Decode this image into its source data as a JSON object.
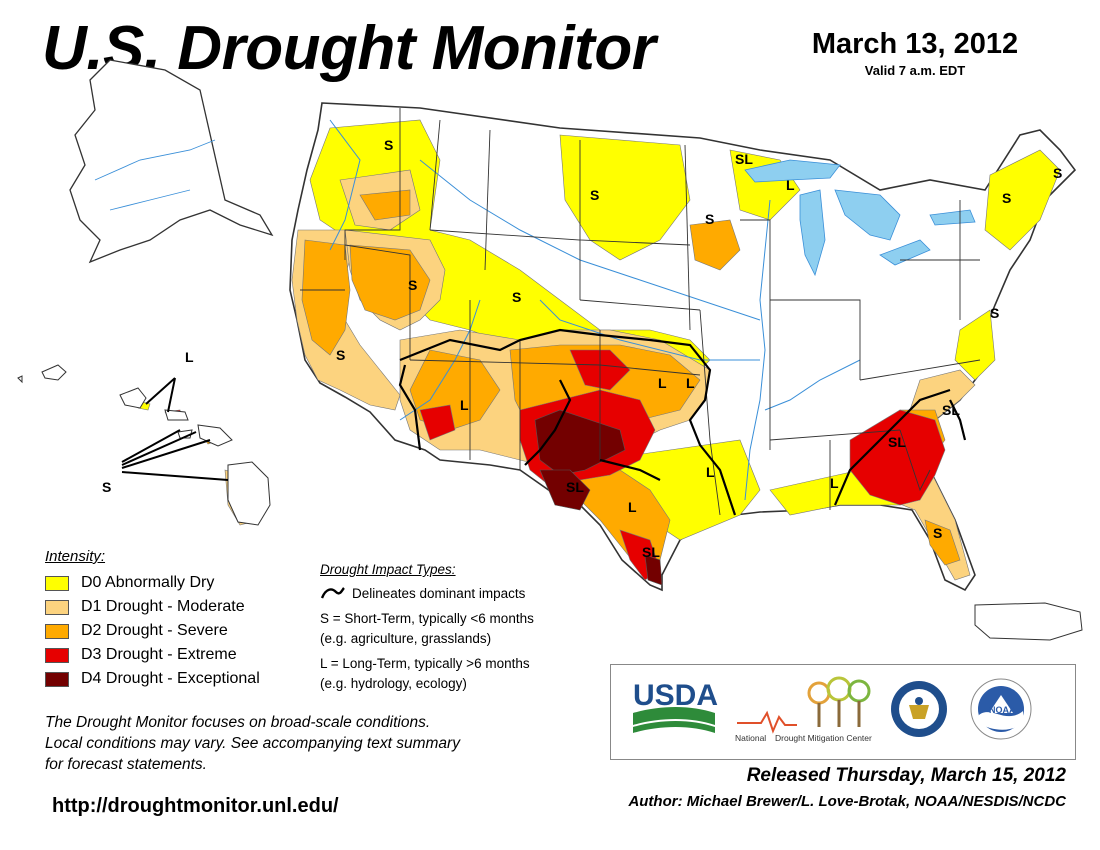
{
  "header": {
    "title": "U.S. Drought Monitor",
    "date": "March 13, 2012",
    "valid": "Valid 7 a.m. EDT"
  },
  "map_labels": {
    "S": "S",
    "L": "L",
    "SL": "SL"
  },
  "legend": {
    "title": "Intensity:",
    "items": [
      {
        "label": "D0 Abnormally Dry",
        "color": "#FFFF00"
      },
      {
        "label": "D1 Drought - Moderate",
        "color": "#FCD37F"
      },
      {
        "label": "D2 Drought - Severe",
        "color": "#FFAA00"
      },
      {
        "label": "D3 Drought - Extreme",
        "color": "#E60000"
      },
      {
        "label": "D4 Drought - Exceptional",
        "color": "#730000"
      }
    ]
  },
  "impact_types": {
    "title": "Drought Impact Types:",
    "delineates": "Delineates dominant impacts",
    "short_term": "S = Short-Term, typically <6 months",
    "short_term_examples": "(e.g. agriculture, grasslands)",
    "long_term": "L = Long-Term, typically >6 months",
    "long_term_examples": "(e.g. hydrology, ecology)"
  },
  "note": {
    "line1": "The Drought Monitor focuses on broad-scale conditions.",
    "line2": "Local conditions may vary. See accompanying text summary",
    "line3": "for forecast statements."
  },
  "url": "http://droughtmonitor.unl.edu/",
  "logos": {
    "usda": "USDA",
    "ndmc_national": "National",
    "ndmc_name": "Drought Mitigation Center",
    "noaa": "NOAA"
  },
  "footer": {
    "released": "Released Thursday, March 15, 2012",
    "author": "Author: Michael Brewer/L. Love-Brotak, NOAA/NESDIS/NCDC"
  },
  "colors": {
    "water": "#8ECFF0",
    "river": "#3A8FD8",
    "county": "#AAAAAA",
    "state": "#333333"
  }
}
